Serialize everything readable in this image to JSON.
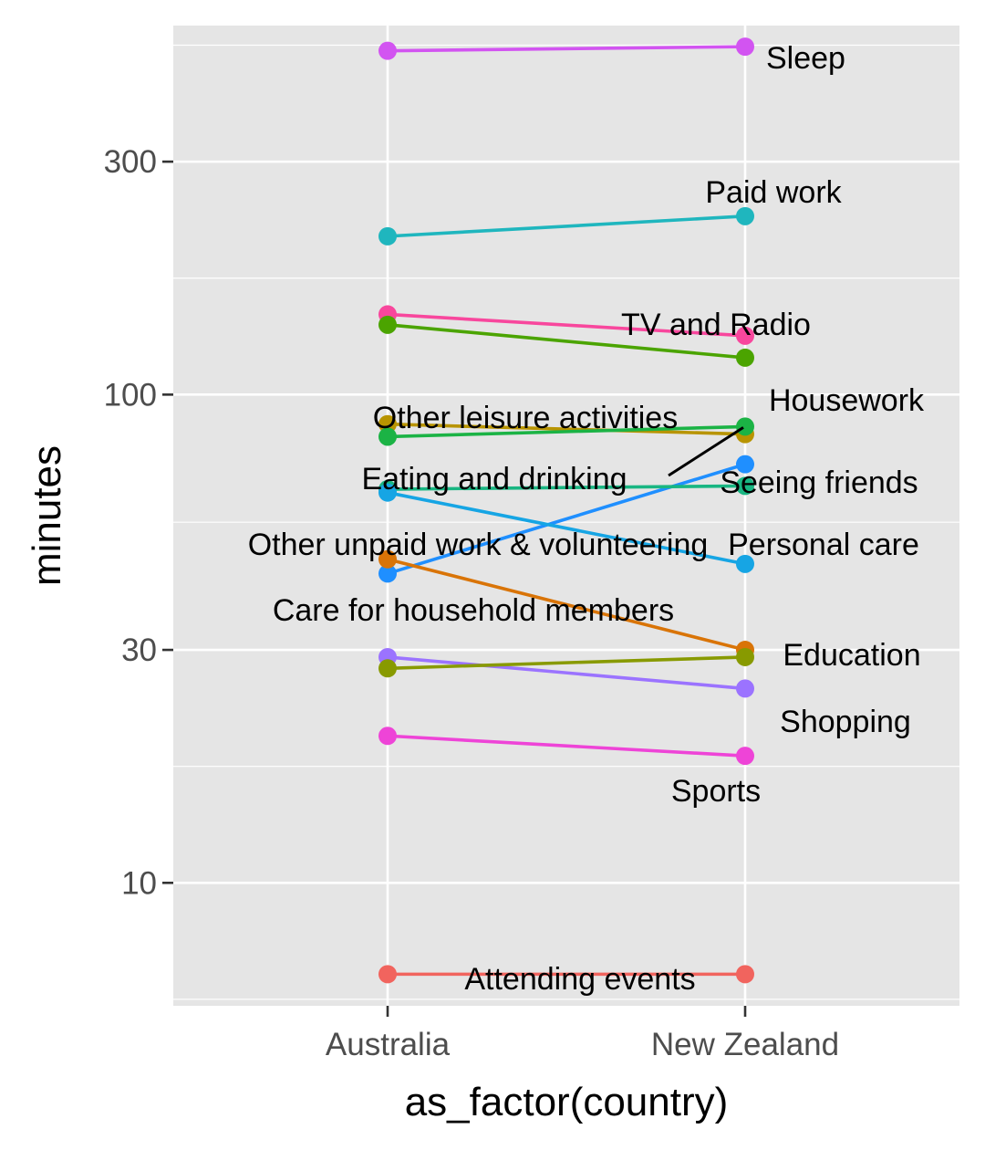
{
  "chart_data": {
    "type": "line",
    "xlabel": "as_factor(country)",
    "ylabel": "minutes",
    "y_scale": "log10",
    "ylim": [
      5.6,
      570
    ],
    "grid": true,
    "legend": "none",
    "categories": [
      "Australia",
      "New Zealand"
    ],
    "y_ticks": [
      10,
      30,
      100,
      300
    ],
    "y_tick_labels": [
      "10",
      "30",
      "100",
      "300"
    ],
    "series": [
      {
        "name": "Sleep",
        "values": [
          506,
          516
        ],
        "color": "#D254F1"
      },
      {
        "name": "Paid work",
        "values": [
          211,
          232
        ],
        "color": "#1FB6BE"
      },
      {
        "name": "TV and Radio",
        "values": [
          146,
          132
        ],
        "color": "#F8479D"
      },
      {
        "name": "Housework",
        "values": [
          139,
          119
        ],
        "color": "#4BA400"
      },
      {
        "name": "Other leisure activities",
        "values": [
          87,
          83
        ],
        "color": "#B89400"
      },
      {
        "name": "Eating and drinking",
        "values": [
          82,
          86
        ],
        "color": "#1BB345"
      },
      {
        "name": "Seeing friends",
        "values": [
          43,
          72
        ],
        "color": "#1F8FFF"
      },
      {
        "name": "Personal care",
        "values": [
          64,
          65
        ],
        "color": "#19B682"
      },
      {
        "name": "Other unpaid work & volunteering",
        "values": [
          63,
          45
        ],
        "color": "#16A5E4"
      },
      {
        "name": "Education",
        "values": [
          46,
          30
        ],
        "color": "#D97407"
      },
      {
        "name": "Care for household members",
        "values": [
          29,
          25
        ],
        "color": "#9B73FF"
      },
      {
        "name": "Shopping",
        "values": [
          27.5,
          29
        ],
        "color": "#889A00"
      },
      {
        "name": "Sports",
        "values": [
          20,
          18.2
        ],
        "color": "#EE44D7"
      },
      {
        "name": "Attending events",
        "values": [
          6.5,
          6.5
        ],
        "color": "#F1645E"
      }
    ]
  }
}
